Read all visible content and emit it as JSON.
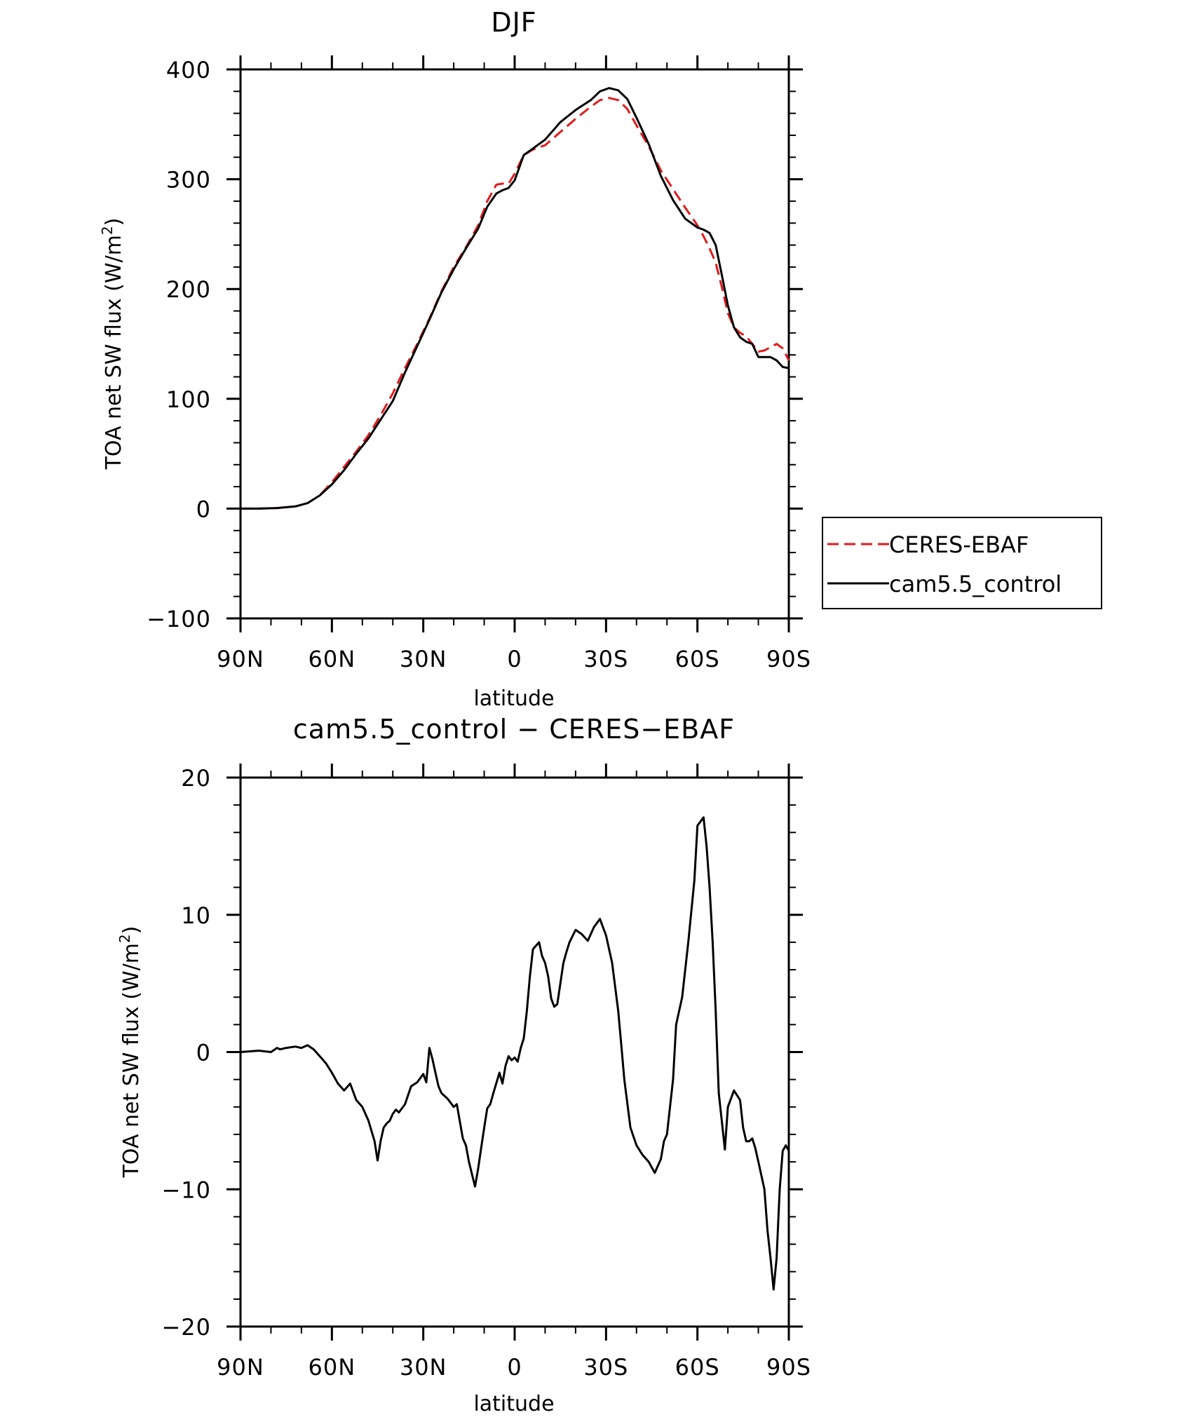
{
  "chart_data": [
    {
      "type": "line",
      "title": "DJF",
      "xlabel": "latitude",
      "ylabel": "TOA net SW flux (W/m",
      "ylabel_sup": "2",
      "ylabel_close": ")",
      "xlim": [
        -90,
        90
      ],
      "ylim": [
        -100,
        400
      ],
      "x_ticks": [
        -90,
        -60,
        -30,
        0,
        30,
        60,
        90
      ],
      "x_tick_labels": [
        "90N",
        "60N",
        "30N",
        "0",
        "30S",
        "60S",
        "90S"
      ],
      "y_ticks": [
        -100,
        0,
        100,
        200,
        300,
        400
      ],
      "y_tick_labels": [
        "−100",
        "0",
        "100",
        "200",
        "300",
        "400"
      ],
      "grid": false,
      "legend_position": "right",
      "series": [
        {
          "name": "CERES-EBAF",
          "color": "#e41a1c",
          "dash": "dashed",
          "x": [
            -90,
            -84,
            -78,
            -72,
            -68,
            -64,
            -60,
            -56,
            -52,
            -48,
            -44,
            -40,
            -36,
            -32,
            -28,
            -24,
            -20,
            -16,
            -12,
            -9,
            -6,
            -4,
            -2,
            0,
            3,
            6,
            10,
            15,
            20,
            25,
            28,
            31,
            34,
            37,
            40,
            44,
            48,
            52,
            56,
            60,
            62,
            64,
            66,
            68,
            70,
            72,
            74,
            76,
            78,
            80,
            82,
            84,
            86,
            88,
            90
          ],
          "y": [
            0,
            0,
            0.5,
            2,
            5,
            12,
            24,
            38,
            52,
            67,
            85,
            105,
            128,
            150,
            173,
            198,
            220,
            238,
            258,
            280,
            295,
            296,
            296,
            305,
            322,
            327,
            331,
            343,
            355,
            366,
            372,
            374,
            372,
            364,
            349,
            330,
            308,
            291,
            274,
            258,
            248,
            237,
            224,
            202,
            178,
            165,
            160,
            157,
            150,
            143,
            144,
            147,
            150,
            146,
            135
          ]
        },
        {
          "name": "cam5.5_control",
          "color": "#000000",
          "dash": "solid",
          "x": [
            -90,
            -84,
            -78,
            -72,
            -68,
            -64,
            -60,
            -56,
            -52,
            -48,
            -44,
            -40,
            -36,
            -32,
            -28,
            -24,
            -20,
            -16,
            -12,
            -9,
            -6,
            -4,
            -2,
            0,
            3,
            6,
            10,
            15,
            20,
            25,
            28,
            31,
            34,
            37,
            40,
            44,
            48,
            52,
            56,
            60,
            62,
            64,
            66,
            68,
            70,
            72,
            74,
            76,
            78,
            80,
            82,
            84,
            86,
            88,
            90
          ],
          "y": [
            0,
            0,
            0.5,
            2,
            5,
            12,
            22,
            35,
            50,
            64,
            81,
            98,
            124,
            148,
            172,
            197,
            218,
            237,
            255,
            275,
            287,
            290,
            292,
            299,
            322,
            328,
            336,
            352,
            363,
            372,
            380,
            383,
            381,
            373,
            356,
            332,
            303,
            281,
            264,
            256,
            254,
            251,
            240,
            213,
            185,
            165,
            156,
            152,
            150,
            138,
            138,
            138,
            135,
            129,
            128
          ]
        }
      ]
    },
    {
      "type": "line",
      "title": "cam5.5_control − CERES−EBAF",
      "xlabel": "latitude",
      "ylabel": "TOA net SW flux (W/m",
      "ylabel_sup": "2",
      "ylabel_close": ")",
      "xlim": [
        -90,
        90
      ],
      "ylim": [
        -20,
        20
      ],
      "x_ticks": [
        -90,
        -60,
        -30,
        0,
        30,
        60,
        90
      ],
      "x_tick_labels": [
        "90N",
        "60N",
        "30N",
        "0",
        "30S",
        "60S",
        "90S"
      ],
      "y_ticks": [
        -20,
        -10,
        0,
        10,
        20
      ],
      "y_tick_labels": [
        "−20",
        "−10",
        "0",
        "10",
        "20"
      ],
      "grid": false,
      "series": [
        {
          "color": "#000000",
          "dash": "solid",
          "x": [
            -90,
            -84,
            -80,
            -78,
            -77,
            -75,
            -72,
            -70,
            -68,
            -66,
            -64,
            -62,
            -60,
            -58,
            -56,
            -54,
            -52,
            -50,
            -48,
            -46,
            -45,
            -44,
            -43,
            -42,
            -41,
            -40,
            -39,
            -38,
            -36,
            -34,
            -32,
            -30,
            -29,
            -28,
            -27,
            -26,
            -25,
            -24,
            -22,
            -20,
            -19,
            -17,
            -16,
            -15,
            -13,
            -12,
            -11,
            -10,
            -9,
            -8,
            -7,
            -5,
            -4,
            -3,
            -2,
            -1,
            0,
            1,
            2,
            3,
            4,
            5,
            6,
            8,
            9,
            10,
            11,
            12,
            13,
            14,
            15,
            16,
            17,
            18,
            20,
            22,
            24,
            26,
            28,
            30,
            32,
            34,
            35,
            36,
            38,
            40,
            42,
            44,
            46,
            48,
            49,
            50,
            52,
            53,
            55,
            57,
            59,
            60,
            62,
            63,
            64,
            65,
            66,
            67,
            68,
            69,
            70,
            72,
            74,
            75,
            76,
            77,
            78,
            79,
            80,
            82,
            83,
            84,
            85,
            86,
            87,
            88,
            89,
            90
          ],
          "y": [
            0,
            0.1,
            0,
            0.3,
            0.2,
            0.3,
            0.4,
            0.3,
            0.5,
            0.2,
            -0.3,
            -0.8,
            -1.5,
            -2.3,
            -2.8,
            -2.3,
            -3.5,
            -4.0,
            -5.0,
            -6.5,
            -7.9,
            -6.5,
            -5.5,
            -5.2,
            -5.0,
            -4.5,
            -4.2,
            -4.4,
            -3.8,
            -2.5,
            -2.2,
            -1.6,
            -2.2,
            0.3,
            -0.5,
            -1.5,
            -2.5,
            -3.0,
            -3.4,
            -4.0,
            -3.8,
            -6.3,
            -6.8,
            -8.0,
            -9.8,
            -8.5,
            -7.0,
            -5.5,
            -4.1,
            -3.8,
            -3.0,
            -1.5,
            -2.3,
            -1.0,
            -0.3,
            -0.6,
            -0.4,
            -0.7,
            0.3,
            1.0,
            3.0,
            5.5,
            7.5,
            8.0,
            7.0,
            6.5,
            5.5,
            3.9,
            3.3,
            3.5,
            5.0,
            6.5,
            7.3,
            8.0,
            8.9,
            8.6,
            8.1,
            9.1,
            9.7,
            8.5,
            6.5,
            3.0,
            0.5,
            -2.0,
            -5.5,
            -6.8,
            -7.5,
            -8.0,
            -8.8,
            -7.8,
            -6.5,
            -6.0,
            -2.0,
            2.0,
            4.0,
            8.0,
            12.5,
            16.5,
            17.1,
            15.0,
            12.0,
            8.0,
            3.0,
            -3.0,
            -5.0,
            -7.1,
            -4.0,
            -2.8,
            -3.5,
            -5.5,
            -6.5,
            -6.5,
            -6.3,
            -7.0,
            -8.0,
            -10.0,
            -13.0,
            -15.0,
            -17.3,
            -15.0,
            -10.0,
            -7.2,
            -6.8,
            -7.2
          ]
        }
      ]
    }
  ]
}
